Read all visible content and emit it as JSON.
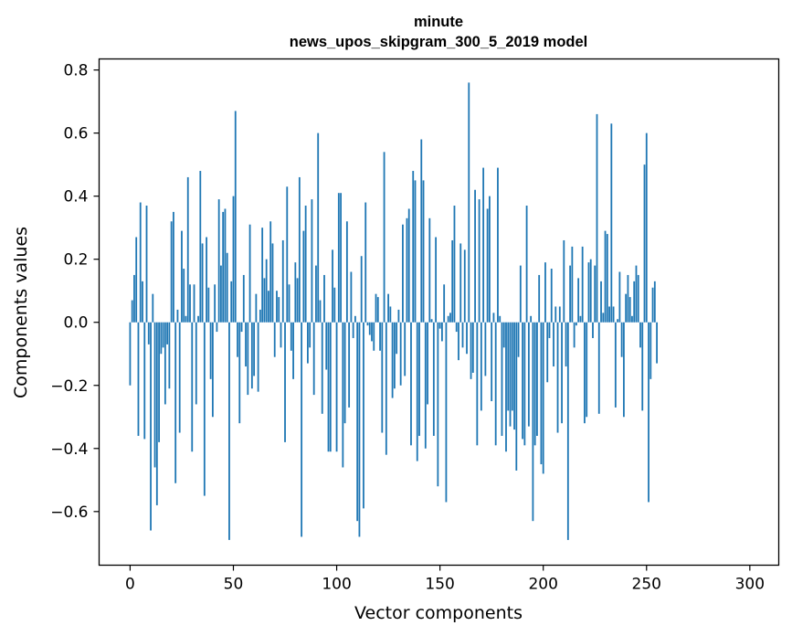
{
  "chart_data": {
    "type": "bar",
    "title_lines": [
      "minute",
      "news_upos_skipgram_300_5_2019 model"
    ],
    "xlabel": "Vector components",
    "ylabel": "Components values",
    "xlim": [
      -15,
      314
    ],
    "ylim": [
      -0.77,
      0.835
    ],
    "x_ticks": [
      0,
      50,
      100,
      150,
      200,
      250,
      300
    ],
    "x_tick_labels": [
      "0",
      "50",
      "100",
      "150",
      "200",
      "250",
      "300"
    ],
    "y_ticks": [
      -0.6,
      -0.4,
      -0.2,
      0.0,
      0.2,
      0.4,
      0.6,
      0.8
    ],
    "y_tick_labels": [
      "−0.6",
      "−0.4",
      "−0.2",
      "0.0",
      "0.2",
      "0.4",
      "0.6",
      "0.8"
    ],
    "bar_color": "#1f77b4",
    "series": [
      {
        "name": "minute",
        "values": [
          -0.2,
          0.07,
          0.15,
          0.27,
          -0.36,
          0.38,
          0.13,
          -0.37,
          0.37,
          -0.07,
          -0.66,
          0.09,
          -0.46,
          -0.58,
          -0.38,
          -0.1,
          -0.08,
          -0.26,
          -0.07,
          -0.21,
          0.32,
          0.35,
          -0.51,
          0.04,
          -0.35,
          0.29,
          0.17,
          0.02,
          0.46,
          0.12,
          -0.41,
          0.12,
          -0.26,
          0.02,
          0.48,
          0.25,
          -0.55,
          0.27,
          0.11,
          -0.18,
          -0.3,
          0.12,
          -0.03,
          0.39,
          0.18,
          0.35,
          0.36,
          0.22,
          -0.69,
          0.13,
          0.4,
          0.67,
          -0.11,
          -0.32,
          -0.03,
          0.15,
          -0.14,
          -0.23,
          0.31,
          -0.21,
          -0.17,
          0.09,
          -0.22,
          0.04,
          0.3,
          0.14,
          0.2,
          0.1,
          0.32,
          0.25,
          -0.11,
          0.1,
          0.08,
          -0.08,
          0.26,
          -0.38,
          0.43,
          0.12,
          -0.09,
          -0.18,
          0.19,
          0.14,
          0.46,
          -0.68,
          0.29,
          0.37,
          -0.13,
          -0.08,
          0.39,
          -0.23,
          0.18,
          0.6,
          0.07,
          -0.29,
          0.15,
          -0.15,
          -0.41,
          -0.41,
          0.23,
          0.11,
          -0.41,
          0.41,
          0.41,
          -0.46,
          -0.32,
          0.32,
          -0.27,
          0.16,
          -0.05,
          0.02,
          -0.63,
          -0.68,
          0.21,
          -0.59,
          0.38,
          -0.01,
          -0.04,
          -0.06,
          -0.09,
          0.09,
          0.08,
          -0.09,
          -0.35,
          0.54,
          -0.42,
          0.09,
          0.05,
          -0.24,
          -0.21,
          -0.1,
          0.04,
          -0.2,
          0.31,
          -0.17,
          0.33,
          0.36,
          -0.39,
          0.48,
          0.45,
          -0.44,
          -0.36,
          0.58,
          0.45,
          -0.4,
          -0.26,
          0.33,
          0.01,
          -0.36,
          0.27,
          -0.52,
          -0.02,
          -0.06,
          0.12,
          -0.57,
          0.02,
          0.03,
          0.26,
          0.37,
          -0.03,
          -0.12,
          0.25,
          -0.08,
          0.23,
          -0.1,
          0.76,
          -0.18,
          -0.16,
          0.42,
          -0.39,
          0.39,
          -0.28,
          0.49,
          -0.17,
          0.36,
          0.4,
          -0.25,
          0.03,
          -0.39,
          0.49,
          0.02,
          -0.36,
          -0.08,
          -0.41,
          -0.28,
          -0.33,
          -0.28,
          -0.34,
          -0.47,
          -0.11,
          0.18,
          -0.37,
          -0.39,
          0.37,
          -0.33,
          0.02,
          -0.63,
          -0.39,
          -0.36,
          0.15,
          -0.45,
          -0.48,
          0.19,
          -0.19,
          -0.05,
          0.17,
          -0.14,
          0.05,
          -0.35,
          0.05,
          -0.32,
          0.26,
          -0.14,
          -0.69,
          0.18,
          0.24,
          -0.08,
          -0.01,
          0.14,
          0.02,
          0.24,
          -0.32,
          -0.3,
          0.19,
          0.2,
          -0.05,
          0.18,
          0.66,
          -0.29,
          0.13,
          0.03,
          0.29,
          0.28,
          0.05,
          0.63,
          0.05,
          -0.27,
          0.01,
          0.16,
          -0.11,
          -0.3,
          0.09,
          0.15,
          0.08,
          0.02,
          0.13,
          0.18,
          0.15,
          -0.08,
          -0.28,
          0.5,
          0.6,
          -0.57,
          -0.18,
          0.11,
          0.13,
          -0.13
        ]
      }
    ]
  }
}
